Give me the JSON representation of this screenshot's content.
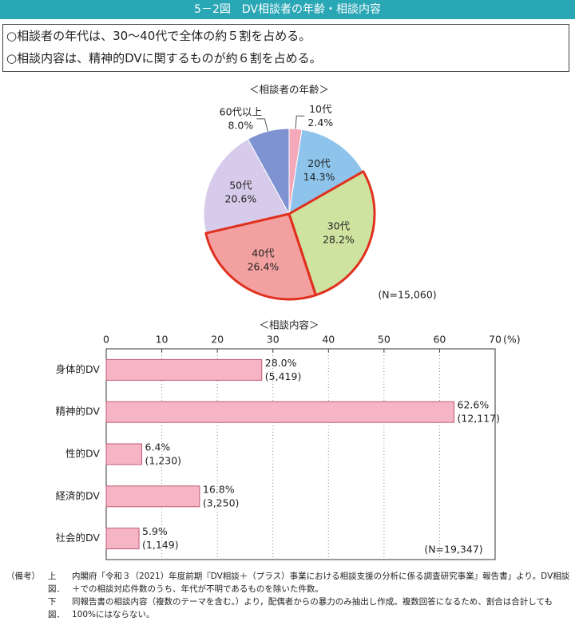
{
  "header": {
    "title": "5－2図　DV相談者の年齢・相談内容"
  },
  "summary": [
    "○相談者の年代は、30～40代で全体の約５割を占める。",
    "○相談内容は、精神的DVに関するものが約６割を占める。"
  ],
  "chart_data": [
    {
      "type": "pie",
      "title": "＜相談者の年齢＞",
      "categories": [
        "10代",
        "20代",
        "30代",
        "40代",
        "50代",
        "60代以上"
      ],
      "values": [
        2.4,
        14.3,
        28.2,
        26.4,
        20.6,
        8.0
      ],
      "value_labels": [
        "2.4%",
        "14.3%",
        "28.2%",
        "26.4%",
        "20.6%",
        "8.0%"
      ],
      "colors": [
        "#f4a9bb",
        "#8ec4ec",
        "#cfe3a0",
        "#f2a0a0",
        "#d6cbea",
        "#7f92d2"
      ],
      "note": "(N=15,060)"
    },
    {
      "type": "bar",
      "orientation": "horizontal",
      "title": "＜相談内容＞",
      "categories": [
        "身体的DV",
        "精神的DV",
        "性的DV",
        "経済的DV",
        "社会的DV"
      ],
      "values": [
        28.0,
        62.6,
        6.4,
        16.8,
        5.9
      ],
      "value_labels": [
        "28.0%",
        "62.6%",
        "6.4%",
        "16.8%",
        "5.9%"
      ],
      "count_labels": [
        "(5,419)",
        "(12,117)",
        "(1,230)",
        "(3,250)",
        "(1,149)"
      ],
      "color": "#f5b5c4",
      "xlim": [
        0,
        70
      ],
      "xticks": [
        0,
        10,
        20,
        30,
        40,
        50,
        60,
        70
      ],
      "x_unit": "(%)",
      "grid": true,
      "note": "(N=19,347)"
    }
  ],
  "notes": {
    "label": "（備考）",
    "items": [
      {
        "label": "上図．",
        "text": "内閣府「令和３（2021）年度前期『DV相談＋（プラス）事業における相談支援の分析に係る調査研究事業』報告書」より。DV相談＋での相談対応件数のうち、年代が不明であるものを除いた件数。"
      },
      {
        "label": "下図．",
        "text": "同報告書の相談内容（複数のテーマを含む。）より，配偶者からの暴力のみ抽出し作成。複数回答になるため、割合は合計しても100%にはならない。"
      }
    ]
  }
}
